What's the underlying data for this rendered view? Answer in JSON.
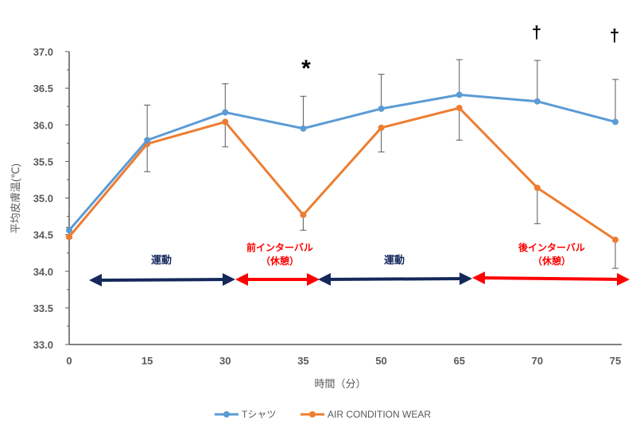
{
  "chart_data": {
    "type": "line",
    "title": "",
    "xlabel": "時間（分）",
    "ylabel": "平均皮膚温(℃)",
    "categories": [
      "0",
      "15",
      "30",
      "35",
      "50",
      "65",
      "70",
      "75"
    ],
    "ylim": [
      33.0,
      37.0
    ],
    "yticks": [
      "33.0",
      "33.5",
      "34.0",
      "34.5",
      "35.0",
      "35.5",
      "36.0",
      "36.5",
      "37.0"
    ],
    "grid": false,
    "legend_position": "bottom",
    "series": [
      {
        "name": "Tシャツ",
        "color": "#5B9BD5",
        "values": [
          34.56,
          35.79,
          36.17,
          35.95,
          36.22,
          36.41,
          36.32,
          36.04
        ],
        "error_upper": [
          34.6,
          36.27,
          36.56,
          36.39,
          36.69,
          36.89,
          36.88,
          36.62
        ]
      },
      {
        "name": "AIR CONDITION WEAR",
        "color": "#ED7D31",
        "values": [
          34.47,
          35.74,
          36.04,
          34.77,
          35.96,
          36.23,
          35.14,
          34.43
        ],
        "error_lower": [
          34.45,
          35.36,
          35.7,
          34.56,
          35.63,
          35.79,
          34.65,
          34.04
        ]
      }
    ],
    "annotations": {
      "exercise_1": "運動",
      "pre_interval_1": "前インターバル",
      "pre_interval_2": "（休憩）",
      "exercise_2": "運動",
      "post_interval_1": "後インターバル",
      "post_interval_2": "（休憩）",
      "sig_35": "*",
      "sig_70": "†",
      "sig_75": "†"
    },
    "colors": {
      "exercise": "#14285A",
      "rest": "#FF0000",
      "axis": "#595959"
    }
  }
}
